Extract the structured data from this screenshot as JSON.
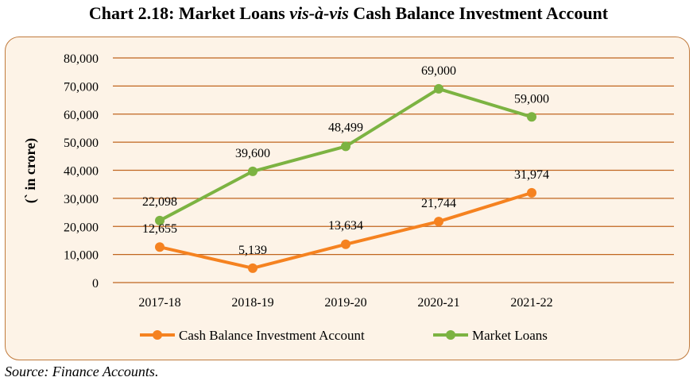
{
  "title": {
    "prefix": "Chart 2.18: Market Loans ",
    "italic": "vis-à-vis",
    "suffix": " Cash Balance Investment Account"
  },
  "source": "Source: Finance Accounts.",
  "colors": {
    "gridline": "#c0651f",
    "cbia": "#f58220",
    "market": "#7cb342",
    "frame_border": "#c07a3c",
    "frame_bg": "#fdf3e7"
  },
  "chart_data": {
    "type": "line",
    "categories": [
      "2017-18",
      "2018-19",
      "2019-20",
      "2020-21",
      "2021-22"
    ],
    "ylabel": "(` in crore)",
    "ylim": [
      0,
      80000
    ],
    "yticks": [
      0,
      10000,
      20000,
      30000,
      40000,
      50000,
      60000,
      70000,
      80000
    ],
    "ytick_labels": [
      "0",
      "10,000",
      "20,000",
      "30,000",
      "40,000",
      "50,000",
      "60,000",
      "70,000",
      "80,000"
    ],
    "grid": true,
    "legend_position": "bottom",
    "series": [
      {
        "name": "Cash Balance Investment Account",
        "values": [
          12655,
          5139,
          13634,
          21744,
          31974
        ],
        "labels": [
          "12,655",
          "5,139",
          "13,634",
          "21,744",
          "31,974"
        ]
      },
      {
        "name": "Market Loans",
        "values": [
          22098,
          39600,
          48499,
          69000,
          59000
        ],
        "labels": [
          "22,098",
          "39,600",
          "48,499",
          "69,000",
          "59,000"
        ]
      }
    ]
  }
}
